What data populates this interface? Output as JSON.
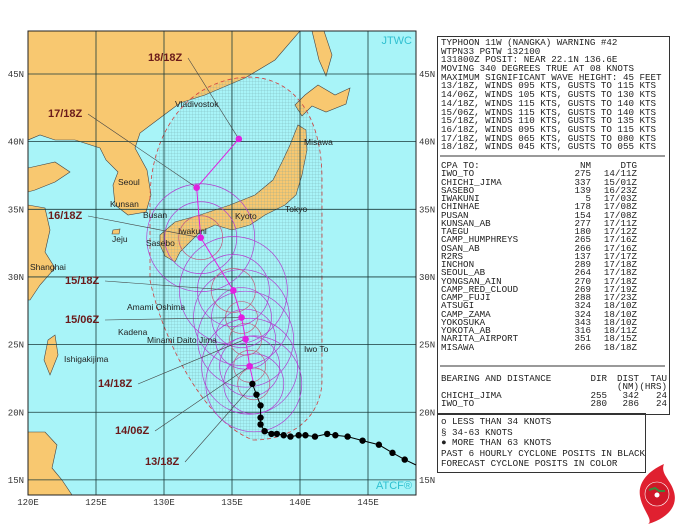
{
  "map": {
    "watermark_top": "JTWC",
    "watermark_bottom": "ATCF®",
    "lat_labels": [
      "45N",
      "40N",
      "35N",
      "30N",
      "25N",
      "20N",
      "15N"
    ],
    "lon_labels": [
      "120E",
      "125E",
      "130E",
      "135E",
      "140E",
      "145E"
    ],
    "colors": {
      "ocean": "#a8f4f8",
      "land": "#f8c870",
      "track_past": "#000000",
      "track_forecast": "#e020e0",
      "radii": "#b040d0",
      "danger": "#d04040"
    },
    "places": [
      "Vladivostok",
      "Misawa",
      "Seoul",
      "Kunsan",
      "Busan",
      "Jeju",
      "Sasebo",
      "Iwakuni",
      "Kyoto",
      "Tokyo",
      "Shanghai",
      "Amami Oshima",
      "Kadena",
      "Minami Daito Jima",
      "Ishigakijima",
      "Iwo To"
    ],
    "forecast": [
      {
        "label": "13/18Z",
        "lat": 22.1,
        "lon": 136.6
      },
      {
        "label": "14/06Z",
        "lat": 23.4,
        "lon": 136.3
      },
      {
        "label": "14/18Z",
        "lat": 25.4,
        "lon": 136.0
      },
      {
        "label": "15/06Z",
        "lat": 27.0,
        "lon": 135.7
      },
      {
        "label": "15/18Z",
        "lat": 29.0,
        "lon": 135.1
      },
      {
        "label": "16/18Z",
        "lat": 32.9,
        "lon": 132.7
      },
      {
        "label": "17/18Z",
        "lat": 36.6,
        "lon": 132.4
      },
      {
        "label": "18/18Z",
        "lat": 40.2,
        "lon": 135.5
      }
    ],
    "past_track": [
      [
        22.1,
        136.5
      ],
      [
        21.3,
        136.8
      ],
      [
        20.5,
        137.1
      ],
      [
        19.6,
        137.1
      ],
      [
        19.1,
        137.1
      ],
      [
        18.6,
        137.4
      ],
      [
        18.4,
        137.9
      ],
      [
        18.4,
        138.3
      ],
      [
        18.3,
        138.8
      ],
      [
        18.2,
        139.3
      ],
      [
        18.3,
        139.9
      ],
      [
        18.3,
        140.4
      ],
      [
        18.2,
        141.1
      ],
      [
        18.4,
        142.0
      ],
      [
        18.3,
        142.6
      ],
      [
        18.2,
        143.5
      ],
      [
        17.9,
        144.6
      ],
      [
        17.6,
        145.8
      ],
      [
        17.0,
        146.8
      ],
      [
        16.5,
        147.7
      ]
    ]
  },
  "warning": {
    "lines": [
      "TYPHOON 11W (NANGKA) WARNING #42",
      "WTPN33 PGTW 132100",
      "131800Z POSIT: NEAR 22.1N 136.6E",
      "MOVING 340 DEGREES TRUE AT 08 KNOTS",
      "MAXIMUM SIGNIFICANT WAVE HEIGHT: 45 FEET",
      "13/18Z, WINDS 095 KTS, GUSTS TO 115 KTS",
      "14/06Z, WINDS 105 KTS, GUSTS TO 130 KTS",
      "14/18Z, WINDS 115 KTS, GUSTS TO 140 KTS",
      "15/06Z, WINDS 115 KTS, GUSTS TO 140 KTS",
      "15/18Z, WINDS 110 KTS, GUSTS TO 135 KTS",
      "16/18Z, WINDS 095 KTS, GUSTS TO 115 KTS",
      "17/18Z, WINDS 065 KTS, GUSTS TO 080 KTS",
      "18/18Z, WINDS 045 KTS, GUSTS TO 055 KTS"
    ]
  },
  "cpa": {
    "header": {
      "name": "CPA TO:",
      "nm": "NM",
      "dtg": "DTG"
    },
    "rows": [
      {
        "name": "IWO_TO",
        "nm": "275",
        "dtg": "14/11Z"
      },
      {
        "name": "CHICHI_JIMA",
        "nm": "337",
        "dtg": "15/01Z"
      },
      {
        "name": "SASEBO",
        "nm": "139",
        "dtg": "16/23Z"
      },
      {
        "name": "IWAKUNI",
        "nm": "5",
        "dtg": "17/03Z"
      },
      {
        "name": "CHINHAE",
        "nm": "178",
        "dtg": "17/08Z"
      },
      {
        "name": "PUSAN",
        "nm": "154",
        "dtg": "17/08Z"
      },
      {
        "name": "KUNSAN_AB",
        "nm": "277",
        "dtg": "17/11Z"
      },
      {
        "name": "TAEGU",
        "nm": "180",
        "dtg": "17/12Z"
      },
      {
        "name": "CAMP_HUMPHREYS",
        "nm": "265",
        "dtg": "17/16Z"
      },
      {
        "name": "OSAN_AB",
        "nm": "266",
        "dtg": "17/16Z"
      },
      {
        "name": "R2RS",
        "nm": "137",
        "dtg": "17/17Z"
      },
      {
        "name": "INCHON",
        "nm": "289",
        "dtg": "17/18Z"
      },
      {
        "name": "SEOUL_AB",
        "nm": "264",
        "dtg": "17/18Z"
      },
      {
        "name": "YONGSAN_AIN",
        "nm": "270",
        "dtg": "17/18Z"
      },
      {
        "name": "CAMP_RED_CLOUD",
        "nm": "269",
        "dtg": "17/19Z"
      },
      {
        "name": "CAMP_FUJI",
        "nm": "288",
        "dtg": "17/23Z"
      },
      {
        "name": "ATSUGI",
        "nm": "324",
        "dtg": "18/10Z"
      },
      {
        "name": "CAMP_ZAMA",
        "nm": "324",
        "dtg": "18/10Z"
      },
      {
        "name": "YOKOSUKA",
        "nm": "343",
        "dtg": "18/10Z"
      },
      {
        "name": "YOKOTA_AB",
        "nm": "316",
        "dtg": "18/11Z"
      },
      {
        "name": "NARITA_AIRPORT",
        "nm": "351",
        "dtg": "18/15Z"
      },
      {
        "name": "MISAWA",
        "nm": "266",
        "dtg": "18/18Z"
      }
    ]
  },
  "bearing": {
    "header": {
      "name": "BEARING AND DISTANCE",
      "dir": "DIR",
      "dist": "DIST",
      "tau": "TAU",
      "dist_unit": "(NM)",
      "tau_unit": "(HRS)"
    },
    "rows": [
      {
        "name": "CHICHI_JIMA",
        "dir": "255",
        "dist": "342",
        "tau": "24"
      },
      {
        "name": "IWO_TO",
        "dir": "280",
        "dist": "286",
        "tau": "24"
      }
    ]
  },
  "legend": {
    "items": [
      {
        "symbol": "o",
        "text": "LESS THAN 34 KNOTS"
      },
      {
        "symbol": "§",
        "text": "34-63 KNOTS"
      },
      {
        "symbol": "●",
        "text": "MORE THAN 63 KNOTS"
      }
    ],
    "note1": "PAST 6 HOURLY CYCLONE POSITS IN BLACK",
    "note2": "FORECAST CYCLONE POSITS IN COLOR"
  }
}
